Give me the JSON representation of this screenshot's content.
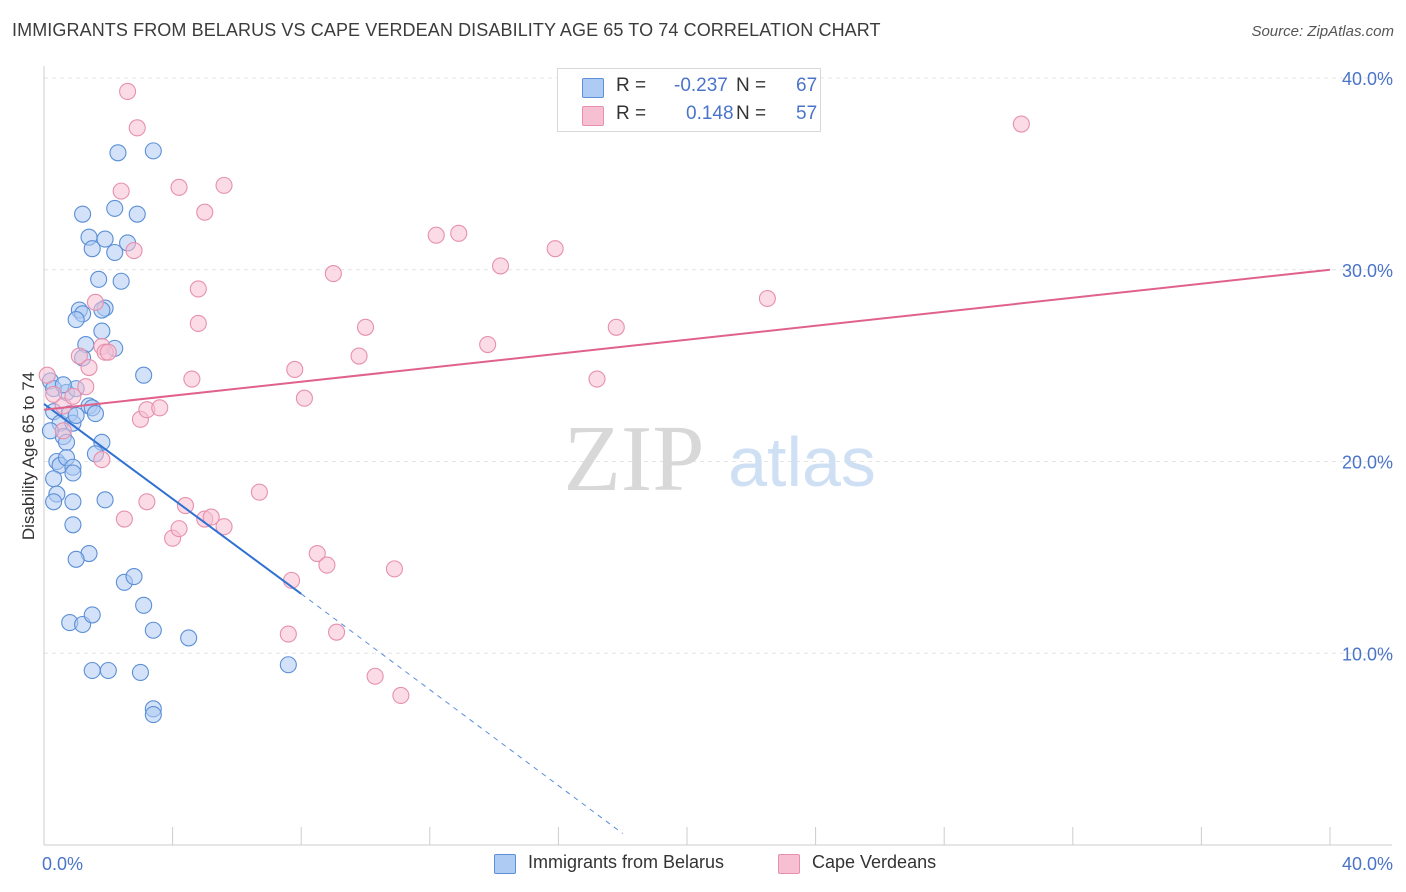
{
  "title": "IMMIGRANTS FROM BELARUS VS CAPE VERDEAN DISABILITY AGE 65 TO 74 CORRELATION CHART",
  "source": "Source: ZipAtlas.com",
  "legend": {
    "r_label": "R =",
    "n_label": "N =",
    "blue": {
      "r": "-0.237",
      "n": "67"
    },
    "pink": {
      "r": "0.148",
      "n": "57"
    }
  },
  "watermark": {
    "zip": "ZIP",
    "atlas": "atlas"
  },
  "colors": {
    "blue_fill": "#aecbf3",
    "blue_stroke": "#5b8fd6",
    "blue_line": "#2f72d2",
    "pink_fill": "#f7c0d2",
    "pink_stroke": "#e690ad",
    "pink_line": "#e0628c",
    "axis_text": "#4a74c9",
    "grid": "#e4e4e4"
  },
  "chart_data": {
    "type": "scatter",
    "title": "IMMIGRANTS FROM BELARUS VS CAPE VERDEAN DISABILITY AGE 65 TO 74 CORRELATION CHART",
    "xlabel": "",
    "ylabel": "Disability Age 65 to 74",
    "xlim": [
      0,
      40
    ],
    "ylim": [
      0,
      40
    ],
    "x_tick_labels": [
      "0.0%",
      "40.0%"
    ],
    "y_ticks": [
      10,
      20,
      30,
      40
    ],
    "y_tick_labels": [
      "10.0%",
      "20.0%",
      "30.0%",
      "40.0%"
    ],
    "grid": true,
    "legend_position": "top-center",
    "series": [
      {
        "name": "Immigrants from Belarus",
        "color": "#aecbf3",
        "points": [
          [
            0.2,
            24.2
          ],
          [
            0.3,
            23.8
          ],
          [
            0.3,
            22.6
          ],
          [
            0.5,
            22.0
          ],
          [
            0.6,
            21.3
          ],
          [
            0.7,
            21.0
          ],
          [
            0.2,
            21.6
          ],
          [
            0.4,
            20.0
          ],
          [
            0.5,
            19.8
          ],
          [
            0.7,
            20.2
          ],
          [
            0.9,
            19.7
          ],
          [
            0.3,
            19.1
          ],
          [
            0.4,
            18.3
          ],
          [
            0.3,
            17.9
          ],
          [
            0.8,
            22.5
          ],
          [
            0.9,
            22.0
          ],
          [
            1.0,
            22.4
          ],
          [
            0.9,
            19.4
          ],
          [
            0.9,
            17.9
          ],
          [
            0.9,
            16.7
          ],
          [
            1.4,
            22.9
          ],
          [
            1.5,
            22.8
          ],
          [
            1.6,
            22.5
          ],
          [
            1.8,
            21.0
          ],
          [
            1.6,
            20.4
          ],
          [
            1.9,
            18.0
          ],
          [
            1.4,
            15.2
          ],
          [
            1.0,
            14.9
          ],
          [
            0.8,
            11.6
          ],
          [
            1.2,
            11.5
          ],
          [
            1.5,
            12.0
          ],
          [
            1.5,
            9.1
          ],
          [
            2.0,
            9.1
          ],
          [
            2.5,
            13.7
          ],
          [
            2.8,
            14.0
          ],
          [
            3.1,
            12.5
          ],
          [
            3.4,
            11.2
          ],
          [
            3.0,
            9.0
          ],
          [
            3.1,
            24.5
          ],
          [
            4.5,
            10.8
          ],
          [
            7.6,
            9.4
          ],
          [
            3.4,
            7.1
          ],
          [
            3.4,
            36.2
          ],
          [
            2.3,
            36.1
          ],
          [
            2.2,
            33.2
          ],
          [
            2.9,
            32.9
          ],
          [
            1.2,
            32.9
          ],
          [
            1.9,
            31.6
          ],
          [
            1.4,
            31.7
          ],
          [
            2.6,
            31.4
          ],
          [
            1.5,
            31.1
          ],
          [
            2.2,
            30.9
          ],
          [
            1.7,
            29.5
          ],
          [
            2.4,
            29.4
          ],
          [
            1.1,
            27.9
          ],
          [
            1.2,
            27.7
          ],
          [
            1.9,
            28.0
          ],
          [
            1.8,
            27.9
          ],
          [
            1.0,
            27.4
          ],
          [
            1.8,
            26.8
          ],
          [
            1.3,
            26.1
          ],
          [
            2.2,
            25.9
          ],
          [
            1.2,
            25.4
          ],
          [
            0.7,
            23.6
          ],
          [
            1.0,
            23.8
          ],
          [
            0.6,
            24.0
          ],
          [
            3.4,
            6.8
          ]
        ]
      },
      {
        "name": "Cape Verdeans",
        "color": "#f7c0d2",
        "points": [
          [
            0.1,
            24.5
          ],
          [
            0.3,
            23.5
          ],
          [
            0.6,
            22.9
          ],
          [
            0.6,
            21.6
          ],
          [
            0.9,
            23.4
          ],
          [
            1.1,
            25.5
          ],
          [
            1.3,
            23.9
          ],
          [
            1.4,
            24.9
          ],
          [
            1.6,
            28.3
          ],
          [
            1.8,
            26.0
          ],
          [
            1.9,
            25.7
          ],
          [
            2.0,
            25.7
          ],
          [
            2.4,
            34.1
          ],
          [
            2.8,
            31.0
          ],
          [
            2.9,
            37.4
          ],
          [
            2.6,
            39.3
          ],
          [
            3.0,
            22.2
          ],
          [
            3.2,
            22.7
          ],
          [
            3.6,
            22.8
          ],
          [
            3.2,
            17.9
          ],
          [
            2.5,
            17.0
          ],
          [
            1.8,
            20.1
          ],
          [
            4.2,
            34.3
          ],
          [
            4.8,
            29.0
          ],
          [
            4.8,
            27.2
          ],
          [
            4.6,
            24.3
          ],
          [
            5.0,
            33.0
          ],
          [
            5.0,
            17.0
          ],
          [
            5.6,
            34.4
          ],
          [
            5.2,
            17.1
          ],
          [
            5.6,
            16.6
          ],
          [
            4.4,
            17.7
          ],
          [
            4.0,
            16.0
          ],
          [
            4.2,
            16.5
          ],
          [
            6.7,
            18.4
          ],
          [
            7.6,
            11.0
          ],
          [
            7.7,
            13.8
          ],
          [
            7.8,
            24.8
          ],
          [
            8.1,
            23.3
          ],
          [
            8.5,
            15.2
          ],
          [
            8.8,
            14.6
          ],
          [
            9.1,
            11.1
          ],
          [
            9.0,
            29.8
          ],
          [
            9.8,
            25.5
          ],
          [
            10.0,
            27.0
          ],
          [
            10.9,
            14.4
          ],
          [
            11.1,
            7.8
          ],
          [
            10.3,
            8.8
          ],
          [
            12.2,
            31.8
          ],
          [
            12.9,
            31.9
          ],
          [
            13.8,
            26.1
          ],
          [
            14.2,
            30.2
          ],
          [
            15.9,
            31.1
          ],
          [
            17.2,
            24.3
          ],
          [
            17.8,
            27.0
          ],
          [
            22.5,
            28.5
          ],
          [
            30.4,
            37.6
          ]
        ]
      }
    ],
    "trend_lines": [
      {
        "series": "Immigrants from Belarus",
        "x": [
          0,
          8.0
        ],
        "y": [
          23.0,
          13.1
        ],
        "dashed_extension_to": [
          18.0,
          0.6
        ]
      },
      {
        "series": "Cape Verdeans",
        "x": [
          0,
          40
        ],
        "y": [
          22.7,
          30.0
        ]
      }
    ]
  }
}
